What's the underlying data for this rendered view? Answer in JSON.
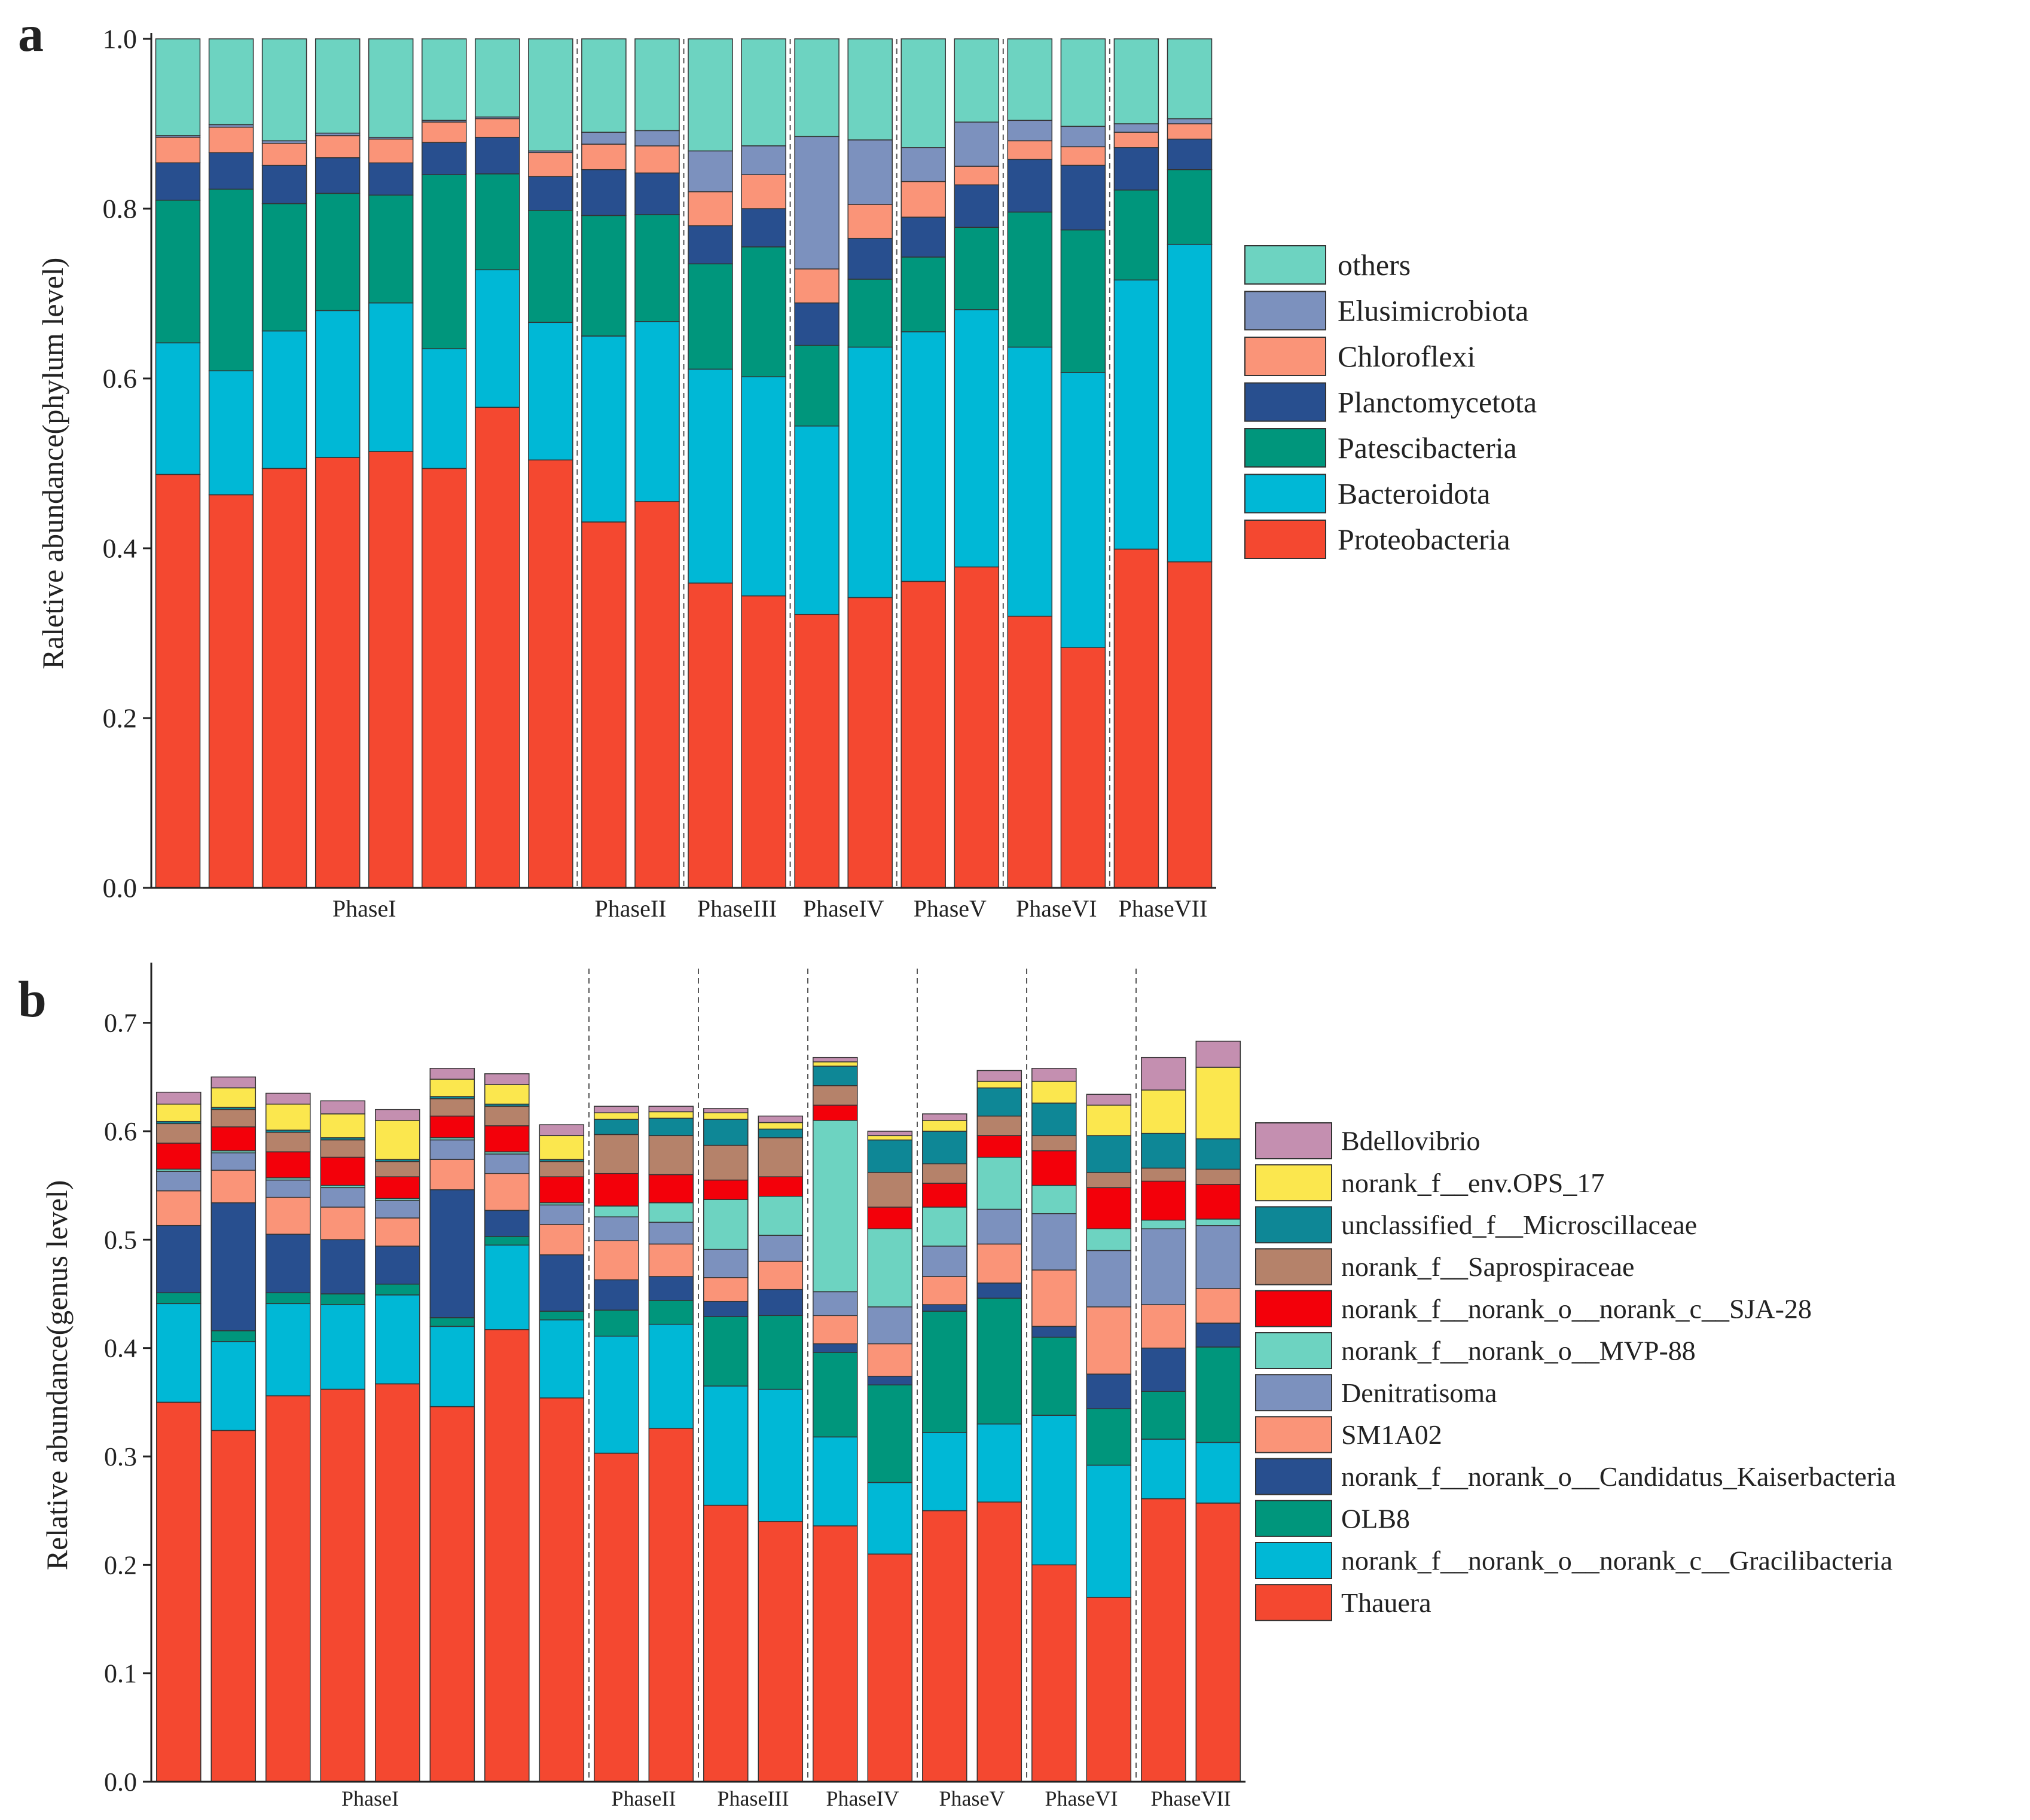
{
  "chart_data": [
    {
      "panel_label": "a",
      "type": "bar",
      "stacked": true,
      "ylabel": "Raletive abundance(phylum level)",
      "ylim": [
        0,
        1.0
      ],
      "yticks": [
        "0.0",
        "0.2",
        "0.4",
        "0.6",
        "0.8",
        "1.0"
      ],
      "phases": [
        {
          "label": "PhaseI",
          "bars": 8
        },
        {
          "label": "PhaseII",
          "bars": 2
        },
        {
          "label": "PhaseIII",
          "bars": 2
        },
        {
          "label": "PhaseIV",
          "bars": 2
        },
        {
          "label": "PhaseV",
          "bars": 2
        },
        {
          "label": "PhaseVI",
          "bars": 2
        },
        {
          "label": "PhaseVII",
          "bars": 2
        }
      ],
      "legend_position": "right",
      "series": [
        {
          "name": "Proteobacteria",
          "color": "#F44830",
          "values": [
            0.487,
            0.463,
            0.494,
            0.507,
            0.514,
            0.494,
            0.566,
            0.504,
            0.431,
            0.455,
            0.359,
            0.344,
            0.322,
            0.342,
            0.361,
            0.378,
            0.32,
            0.283,
            0.399,
            0.384
          ]
        },
        {
          "name": "Bacteroidota",
          "color": "#00B8D6",
          "values": [
            0.155,
            0.146,
            0.162,
            0.173,
            0.175,
            0.141,
            0.162,
            0.162,
            0.219,
            0.212,
            0.252,
            0.258,
            0.222,
            0.295,
            0.294,
            0.303,
            0.317,
            0.324,
            0.317,
            0.374
          ]
        },
        {
          "name": "Patescibacteria",
          "color": "#00967C",
          "values": [
            0.168,
            0.214,
            0.15,
            0.138,
            0.127,
            0.205,
            0.113,
            0.132,
            0.142,
            0.126,
            0.124,
            0.153,
            0.095,
            0.08,
            0.088,
            0.097,
            0.159,
            0.168,
            0.106,
            0.088
          ]
        },
        {
          "name": "Planctomycetota",
          "color": "#284F8F",
          "values": [
            0.044,
            0.043,
            0.045,
            0.042,
            0.038,
            0.038,
            0.043,
            0.04,
            0.054,
            0.049,
            0.045,
            0.045,
            0.05,
            0.048,
            0.047,
            0.05,
            0.062,
            0.076,
            0.05,
            0.036
          ]
        },
        {
          "name": "Chloroflexi",
          "color": "#FA9478",
          "values": [
            0.03,
            0.03,
            0.026,
            0.026,
            0.028,
            0.024,
            0.022,
            0.028,
            0.03,
            0.032,
            0.04,
            0.04,
            0.04,
            0.04,
            0.042,
            0.022,
            0.022,
            0.022,
            0.018,
            0.018
          ]
        },
        {
          "name": "Elusimicrobiota",
          "color": "#7C91BE",
          "values": [
            0.002,
            0.003,
            0.003,
            0.003,
            0.002,
            0.002,
            0.002,
            0.002,
            0.014,
            0.018,
            0.048,
            0.034,
            0.156,
            0.076,
            0.04,
            0.052,
            0.024,
            0.024,
            0.01,
            0.006
          ]
        },
        {
          "name": "others",
          "color": "#6DD3C1",
          "values": [
            0.114,
            0.101,
            0.12,
            0.111,
            0.116,
            0.096,
            0.092,
            0.132,
            0.11,
            0.108,
            0.132,
            0.126,
            0.115,
            0.119,
            0.128,
            0.098,
            0.096,
            0.103,
            0.1,
            0.094
          ]
        }
      ]
    },
    {
      "panel_label": "b",
      "type": "bar",
      "stacked": true,
      "ylabel": "Relative abundance(genus level)",
      "ylim": [
        0,
        0.75
      ],
      "yticks": [
        "0.0",
        "0.1",
        "0.2",
        "0.3",
        "0.4",
        "0.5",
        "0.6",
        "0.7"
      ],
      "phases": [
        {
          "label": "PhaseI",
          "bars": 8
        },
        {
          "label": "PhaseII",
          "bars": 2
        },
        {
          "label": "PhaseIII",
          "bars": 2
        },
        {
          "label": "PhaseIV",
          "bars": 2
        },
        {
          "label": "PhaseV",
          "bars": 2
        },
        {
          "label": "PhaseVI",
          "bars": 2
        },
        {
          "label": "PhaseVII",
          "bars": 2
        }
      ],
      "legend_position": "right",
      "series": [
        {
          "name": "Thauera",
          "color": "#F44830",
          "values": [
            0.35,
            0.324,
            0.356,
            0.362,
            0.367,
            0.346,
            0.417,
            0.354,
            0.303,
            0.326,
            0.255,
            0.24,
            0.236,
            0.21,
            0.25,
            0.258,
            0.2,
            0.17,
            0.261,
            0.257
          ]
        },
        {
          "name": "norank_f__norank_o__norank_c__Gracilibacteria",
          "color": "#00B8D6",
          "values": [
            0.091,
            0.082,
            0.085,
            0.078,
            0.082,
            0.074,
            0.078,
            0.072,
            0.108,
            0.096,
            0.11,
            0.122,
            0.082,
            0.066,
            0.072,
            0.072,
            0.138,
            0.122,
            0.055,
            0.056
          ]
        },
        {
          "name": "OLB8",
          "color": "#00967C",
          "values": [
            0.01,
            0.01,
            0.01,
            0.01,
            0.01,
            0.008,
            0.008,
            0.008,
            0.024,
            0.022,
            0.064,
            0.068,
            0.078,
            0.09,
            0.112,
            0.116,
            0.072,
            0.052,
            0.044,
            0.088
          ]
        },
        {
          "name": "norank_f__norank_o__Candidatus_Kaiserbacteria",
          "color": "#284F8F",
          "values": [
            0.062,
            0.118,
            0.054,
            0.05,
            0.035,
            0.118,
            0.024,
            0.052,
            0.028,
            0.022,
            0.014,
            0.024,
            0.008,
            0.008,
            0.006,
            0.014,
            0.01,
            0.032,
            0.04,
            0.022
          ]
        },
        {
          "name": "SM1A02",
          "color": "#FA9478",
          "values": [
            0.032,
            0.03,
            0.034,
            0.03,
            0.026,
            0.028,
            0.034,
            0.028,
            0.036,
            0.03,
            0.022,
            0.026,
            0.026,
            0.03,
            0.026,
            0.036,
            0.052,
            0.062,
            0.04,
            0.032
          ]
        },
        {
          "name": "Denitratisoma",
          "color": "#7C91BE",
          "values": [
            0.018,
            0.016,
            0.016,
            0.018,
            0.016,
            0.018,
            0.018,
            0.018,
            0.022,
            0.02,
            0.026,
            0.024,
            0.022,
            0.034,
            0.028,
            0.032,
            0.052,
            0.052,
            0.07,
            0.058
          ]
        },
        {
          "name": "norank_f__norank_o__MVP-88",
          "color": "#6DD3C1",
          "values": [
            0.002,
            0.002,
            0.002,
            0.002,
            0.002,
            0.002,
            0.002,
            0.002,
            0.01,
            0.018,
            0.046,
            0.036,
            0.158,
            0.072,
            0.036,
            0.048,
            0.026,
            0.02,
            0.008,
            0.006
          ]
        },
        {
          "name": "norank_f__norank_o__norank_c__SJA-28",
          "color": "#F3000A",
          "values": [
            0.024,
            0.022,
            0.024,
            0.026,
            0.02,
            0.02,
            0.024,
            0.024,
            0.03,
            0.026,
            0.018,
            0.018,
            0.014,
            0.02,
            0.022,
            0.02,
            0.032,
            0.038,
            0.036,
            0.032
          ]
        },
        {
          "name": "norank_f__Saprospiraceae",
          "color": "#B5826A",
          "values": [
            0.018,
            0.016,
            0.018,
            0.016,
            0.014,
            0.016,
            0.018,
            0.014,
            0.036,
            0.036,
            0.032,
            0.036,
            0.018,
            0.032,
            0.018,
            0.018,
            0.014,
            0.014,
            0.012,
            0.014
          ]
        },
        {
          "name": "unclassified_f__Microscillaceae",
          "color": "#0E8796",
          "values": [
            0.002,
            0.002,
            0.002,
            0.002,
            0.002,
            0.002,
            0.002,
            0.002,
            0.014,
            0.016,
            0.024,
            0.008,
            0.018,
            0.03,
            0.03,
            0.026,
            0.03,
            0.034,
            0.032,
            0.028
          ]
        },
        {
          "name": "norank_f__env.OPS_17",
          "color": "#FBE74E",
          "values": [
            0.016,
            0.018,
            0.024,
            0.022,
            0.036,
            0.016,
            0.018,
            0.022,
            0.006,
            0.006,
            0.006,
            0.006,
            0.004,
            0.004,
            0.01,
            0.006,
            0.02,
            0.028,
            0.04,
            0.066
          ]
        },
        {
          "name": "Bdellovibrio",
          "color": "#C48FB0",
          "values": [
            0.011,
            0.01,
            0.01,
            0.012,
            0.01,
            0.01,
            0.01,
            0.01,
            0.006,
            0.005,
            0.004,
            0.006,
            0.004,
            0.004,
            0.006,
            0.01,
            0.012,
            0.01,
            0.03,
            0.024
          ]
        }
      ]
    }
  ]
}
